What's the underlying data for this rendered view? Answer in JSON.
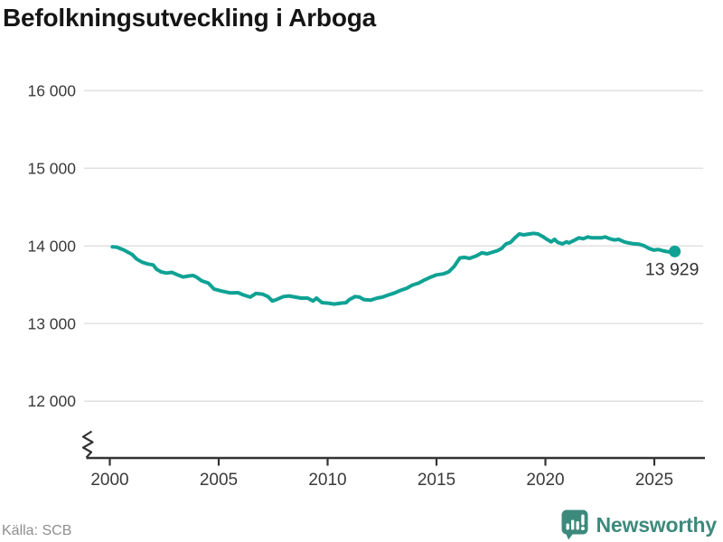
{
  "title": "Befolkningsutveckling i Arboga",
  "source": "Källa: SCB",
  "branding": {
    "logo_text": "Newsworthy",
    "logo_color": "#3d8a7d"
  },
  "chart_data": {
    "type": "line",
    "title": "Befolkningsutveckling i Arboga",
    "xlabel": "",
    "ylabel": "",
    "grid": true,
    "legend": false,
    "y_axis_break": true,
    "ylim": [
      12000,
      16000
    ],
    "xlim": [
      1999,
      2027
    ],
    "line_color": "#0fa294",
    "grid_color": "#e2e2e2",
    "axis_color": "#333333",
    "tick_label_color": "#3a3a3a",
    "end_label": "13 929",
    "end_value": 13929,
    "yticks": [
      {
        "value": 16000,
        "label": "16 000"
      },
      {
        "value": 15000,
        "label": "15 000"
      },
      {
        "value": 14000,
        "label": "14 000"
      },
      {
        "value": 13000,
        "label": "13 000"
      },
      {
        "value": 12000,
        "label": "12 000"
      }
    ],
    "xticks": [
      {
        "value": 2000,
        "label": "2000"
      },
      {
        "value": 2005,
        "label": "2005"
      },
      {
        "value": 2010,
        "label": "2010"
      },
      {
        "value": 2015,
        "label": "2015"
      },
      {
        "value": 2020,
        "label": "2020"
      },
      {
        "value": 2025,
        "label": "2025"
      }
    ],
    "series": [
      {
        "name": "Folkmängd",
        "points": [
          [
            2000.12,
            13990
          ],
          [
            2000.32,
            13985
          ],
          [
            2000.63,
            13950
          ],
          [
            2001.03,
            13890
          ],
          [
            2001.23,
            13833
          ],
          [
            2001.49,
            13790
          ],
          [
            2001.74,
            13768
          ],
          [
            2001.99,
            13756
          ],
          [
            2002.15,
            13700
          ],
          [
            2002.35,
            13667
          ],
          [
            2002.6,
            13651
          ],
          [
            2002.85,
            13660
          ],
          [
            2003.11,
            13628
          ],
          [
            2003.36,
            13601
          ],
          [
            2003.66,
            13615
          ],
          [
            2003.82,
            13620
          ],
          [
            2003.97,
            13601
          ],
          [
            2004.22,
            13551
          ],
          [
            2004.52,
            13523
          ],
          [
            2004.78,
            13446
          ],
          [
            2005.13,
            13419
          ],
          [
            2005.54,
            13395
          ],
          [
            2005.89,
            13399
          ],
          [
            2006.15,
            13368
          ],
          [
            2006.45,
            13341
          ],
          [
            2006.7,
            13388
          ],
          [
            2007.01,
            13380
          ],
          [
            2007.26,
            13349
          ],
          [
            2007.46,
            13291
          ],
          [
            2007.66,
            13310
          ],
          [
            2007.97,
            13349
          ],
          [
            2008.22,
            13357
          ],
          [
            2008.52,
            13341
          ],
          [
            2008.78,
            13329
          ],
          [
            2009.08,
            13329
          ],
          [
            2009.33,
            13291
          ],
          [
            2009.49,
            13329
          ],
          [
            2009.74,
            13271
          ],
          [
            2010.04,
            13264
          ],
          [
            2010.3,
            13252
          ],
          [
            2010.6,
            13264
          ],
          [
            2010.85,
            13271
          ],
          [
            2011.0,
            13310
          ],
          [
            2011.26,
            13349
          ],
          [
            2011.46,
            13341
          ],
          [
            2011.66,
            13310
          ],
          [
            2011.97,
            13302
          ],
          [
            2012.27,
            13329
          ],
          [
            2012.52,
            13341
          ],
          [
            2012.78,
            13368
          ],
          [
            2013.08,
            13395
          ],
          [
            2013.33,
            13426
          ],
          [
            2013.64,
            13457
          ],
          [
            2013.89,
            13496
          ],
          [
            2014.19,
            13523
          ],
          [
            2014.45,
            13562
          ],
          [
            2014.75,
            13601
          ],
          [
            2015.0,
            13628
          ],
          [
            2015.31,
            13640
          ],
          [
            2015.56,
            13667
          ],
          [
            2015.81,
            13736
          ],
          [
            2016.07,
            13845
          ],
          [
            2016.27,
            13853
          ],
          [
            2016.52,
            13841
          ],
          [
            2016.83,
            13872
          ],
          [
            2017.08,
            13911
          ],
          [
            2017.33,
            13899
          ],
          [
            2017.59,
            13922
          ],
          [
            2017.79,
            13938
          ],
          [
            2017.99,
            13969
          ],
          [
            2018.19,
            14027
          ],
          [
            2018.4,
            14047
          ],
          [
            2018.6,
            14105
          ],
          [
            2018.8,
            14155
          ],
          [
            2019.0,
            14143
          ],
          [
            2019.26,
            14155
          ],
          [
            2019.46,
            14163
          ],
          [
            2019.66,
            14155
          ],
          [
            2019.86,
            14124
          ],
          [
            2020.07,
            14085
          ],
          [
            2020.27,
            14054
          ],
          [
            2020.42,
            14085
          ],
          [
            2020.57,
            14047
          ],
          [
            2020.78,
            14027
          ],
          [
            2020.98,
            14054
          ],
          [
            2021.08,
            14039
          ],
          [
            2021.28,
            14066
          ],
          [
            2021.54,
            14105
          ],
          [
            2021.74,
            14093
          ],
          [
            2021.94,
            14116
          ],
          [
            2022.14,
            14105
          ],
          [
            2022.35,
            14105
          ],
          [
            2022.55,
            14105
          ],
          [
            2022.75,
            14116
          ],
          [
            2022.95,
            14093
          ],
          [
            2023.16,
            14078
          ],
          [
            2023.36,
            14085
          ],
          [
            2023.61,
            14054
          ],
          [
            2023.81,
            14039
          ],
          [
            2024.01,
            14030
          ],
          [
            2024.27,
            14024
          ],
          [
            2024.52,
            14005
          ],
          [
            2024.77,
            13966
          ],
          [
            2024.98,
            13947
          ],
          [
            2025.18,
            13955
          ],
          [
            2025.38,
            13940
          ],
          [
            2025.58,
            13928
          ],
          [
            2025.78,
            13920
          ],
          [
            2025.94,
            13929
          ]
        ]
      }
    ]
  }
}
